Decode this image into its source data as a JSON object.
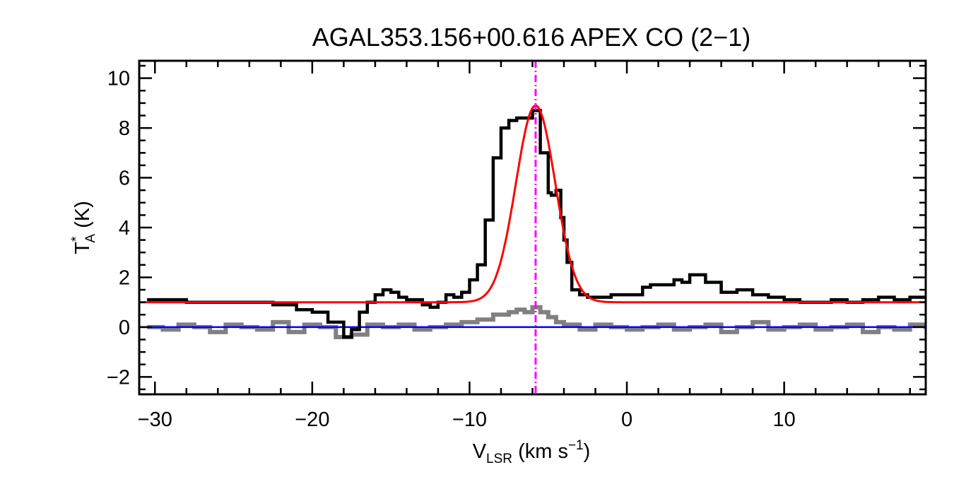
{
  "chart_data": {
    "type": "line",
    "title": "AGAL353.156+00.616  APEX CO (2−1)",
    "xlabel": {
      "main": "V",
      "sub": "LSR",
      "unit_open": " (km s",
      "sup": "−1",
      "unit_close": ")"
    },
    "ylabel": {
      "main": "T",
      "sup": "*",
      "sub": "A",
      "unit": " (K)"
    },
    "xlim": [
      -31,
      19
    ],
    "ylim": [
      -2.7,
      10.7
    ],
    "xticks": [
      -30,
      -20,
      -10,
      0,
      10
    ],
    "xtick_labels": [
      "−30",
      "−20",
      "−10",
      "0",
      "10"
    ],
    "yticks": [
      -2,
      0,
      2,
      4,
      6,
      8,
      10
    ],
    "ytick_labels": [
      "−2",
      "0",
      "2",
      "4",
      "6",
      "8",
      "10"
    ],
    "grid": false,
    "colors": {
      "spectrum": "#000000",
      "residual": "#808080",
      "fit": "#ff0000",
      "baseline": "#0000ff",
      "vlsr_marker": "#ff00ff"
    },
    "series": [
      {
        "style": "step",
        "x": [
          -30.5,
          -28.0,
          -25.0,
          -22.5,
          -21.0,
          -20.0,
          -19.0,
          -18.0,
          -17.5,
          -17.0,
          -16.5,
          -16.0,
          -15.5,
          -15.0,
          -14.5,
          -14.0,
          -13.0,
          -12.5,
          -12.0,
          -11.5,
          -11.0,
          -10.5,
          -10.0,
          -9.5,
          -9.0,
          -8.5,
          -8.0,
          -7.5,
          -7.0,
          -6.5,
          -6.0,
          -5.5,
          -5.0,
          -4.8,
          -4.5,
          -4.2,
          -4.0,
          -3.8,
          -3.5,
          -3.0,
          -2.5,
          -2.0,
          -1.0,
          0.0,
          1.0,
          1.5,
          2.0,
          3.0,
          3.5,
          4.0,
          5.0,
          6.0,
          7.0,
          8.0,
          9.0,
          10.0,
          11.0,
          12.0,
          13.0,
          14.0,
          15.0,
          16.0,
          17.0,
          18.0,
          19.0
        ],
        "y": [
          1.1,
          1.0,
          1.0,
          0.9,
          0.7,
          0.6,
          0.2,
          -0.4,
          -0.1,
          0.6,
          1.0,
          1.3,
          1.5,
          1.4,
          1.2,
          1.1,
          0.9,
          0.8,
          1.0,
          1.3,
          1.2,
          1.4,
          1.9,
          2.5,
          4.3,
          6.8,
          8.0,
          8.3,
          8.4,
          8.4,
          8.7,
          7.0,
          5.4,
          5.3,
          5.5,
          4.4,
          3.5,
          2.6,
          1.5,
          1.3,
          1.2,
          1.2,
          1.3,
          1.3,
          1.6,
          1.7,
          1.7,
          1.9,
          1.8,
          2.1,
          1.8,
          1.4,
          1.5,
          1.3,
          1.2,
          1.1,
          1.0,
          1.0,
          1.1,
          1.0,
          1.1,
          1.2,
          1.1,
          1.2,
          1.2
        ]
      },
      {
        "style": "step",
        "x": [
          -30.5,
          -29.5,
          -28.5,
          -27.5,
          -26.5,
          -25.5,
          -24.5,
          -23.5,
          -22.5,
          -21.5,
          -20.5,
          -19.5,
          -18.5,
          -17.5,
          -16.5,
          -15.5,
          -14.5,
          -13.5,
          -12.5,
          -11.5,
          -10.5,
          -9.5,
          -8.5,
          -7.5,
          -7.0,
          -6.5,
          -6.0,
          -5.5,
          -5.0,
          -4.5,
          -4.0,
          -3.0,
          -2.0,
          -1.0,
          0.0,
          1.0,
          2.0,
          3.0,
          4.0,
          5.0,
          6.0,
          7.0,
          8.0,
          9.0,
          10.0,
          11.0,
          12.0,
          13.0,
          14.0,
          15.0,
          16.0,
          17.0,
          18.0,
          19.0
        ],
        "y": [
          0.0,
          -0.1,
          0.1,
          0.0,
          -0.2,
          0.1,
          0.0,
          -0.1,
          0.2,
          -0.2,
          0.1,
          0.0,
          -0.4,
          -0.3,
          0.1,
          0.0,
          0.1,
          -0.1,
          0.0,
          0.1,
          0.2,
          0.3,
          0.5,
          0.6,
          0.7,
          0.6,
          0.8,
          0.6,
          0.4,
          0.2,
          0.1,
          -0.1,
          0.1,
          0.0,
          -0.1,
          0.0,
          0.1,
          -0.1,
          0.0,
          0.1,
          -0.2,
          0.0,
          0.2,
          -0.1,
          0.0,
          0.1,
          -0.1,
          0.0,
          0.1,
          -0.2,
          0.0,
          -0.1,
          0.1,
          0.0
        ]
      },
      {
        "style": "gaussian",
        "baseline": 1.0,
        "amplitude": 7.9,
        "center": -5.8,
        "sigma": 1.25
      },
      {
        "style": "hline",
        "y": 0.0
      },
      {
        "style": "vline",
        "x": -5.8
      }
    ]
  }
}
